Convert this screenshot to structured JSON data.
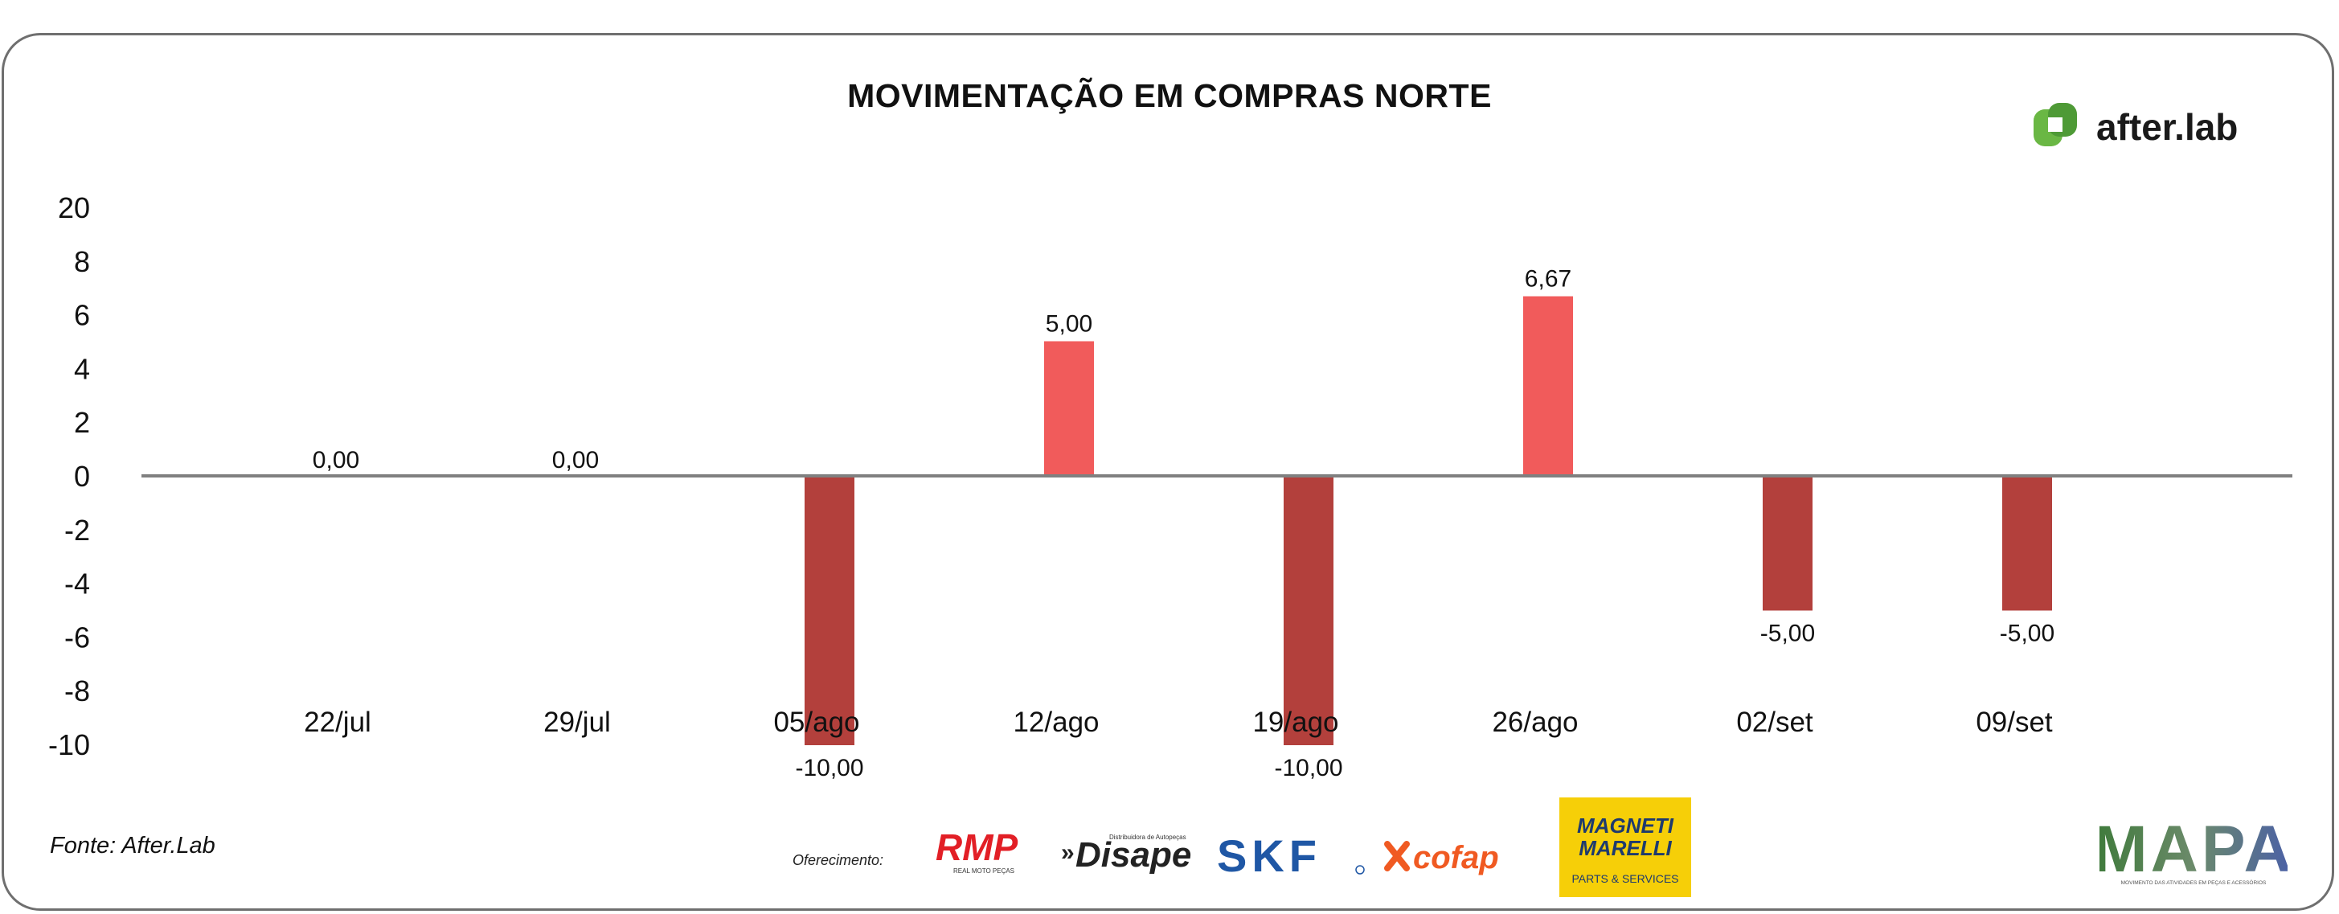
{
  "title": "MOVIMENTAÇÃO EM COMPRAS NORTE",
  "brand_top": "after.lab",
  "source": "Fonte: After.Lab",
  "sponsor_label": "Oferecimento:",
  "sponsors": {
    "rmp": "RMP",
    "rmp_sub": "REAL MOTO PEÇAS",
    "disape": "Disape",
    "disape_sub": "Distribuidora de Autopeças",
    "skf": "SKF",
    "cofap": "cofap",
    "magneti_1": "MAGNETI",
    "magneti_2": "MARELLI",
    "magneti_sub": "PARTS & SERVICES"
  },
  "brand_bottom": "MAPA",
  "brand_bottom_sub": "MOVIMENTO DAS ATIVIDADES EM PEÇAS E ACESSÓRIOS",
  "colors": {
    "positive": "#f15b5b",
    "negative": "#b3403c",
    "axis": "#808080",
    "afterlab_green": "#6ab744",
    "magneti_yellow": "#f6cf08",
    "skf_blue": "#1f57a5",
    "cofap_orange": "#f05a22",
    "rmp_red": "#e21f26"
  },
  "chart_data": {
    "type": "bar",
    "title": "MOVIMENTAÇÃO EM COMPRAS NORTE",
    "categories": [
      "22/jul",
      "29/jul",
      "05/ago",
      "12/ago",
      "19/ago",
      "26/ago",
      "02/set",
      "09/set"
    ],
    "values": [
      0,
      0,
      -10,
      5,
      -10,
      6.67,
      -5,
      -5
    ],
    "value_labels": [
      "0,00",
      "0,00",
      "-10,00",
      "5,00",
      "-10,00",
      "6,67",
      "-5,00",
      "-5,00"
    ],
    "y_ticks": [
      "20",
      "8",
      "6",
      "4",
      "2",
      "0",
      "-2",
      "-4",
      "-6",
      "-8",
      "-10"
    ],
    "ylim": [
      -10,
      20
    ],
    "grid": false,
    "legend": false
  }
}
